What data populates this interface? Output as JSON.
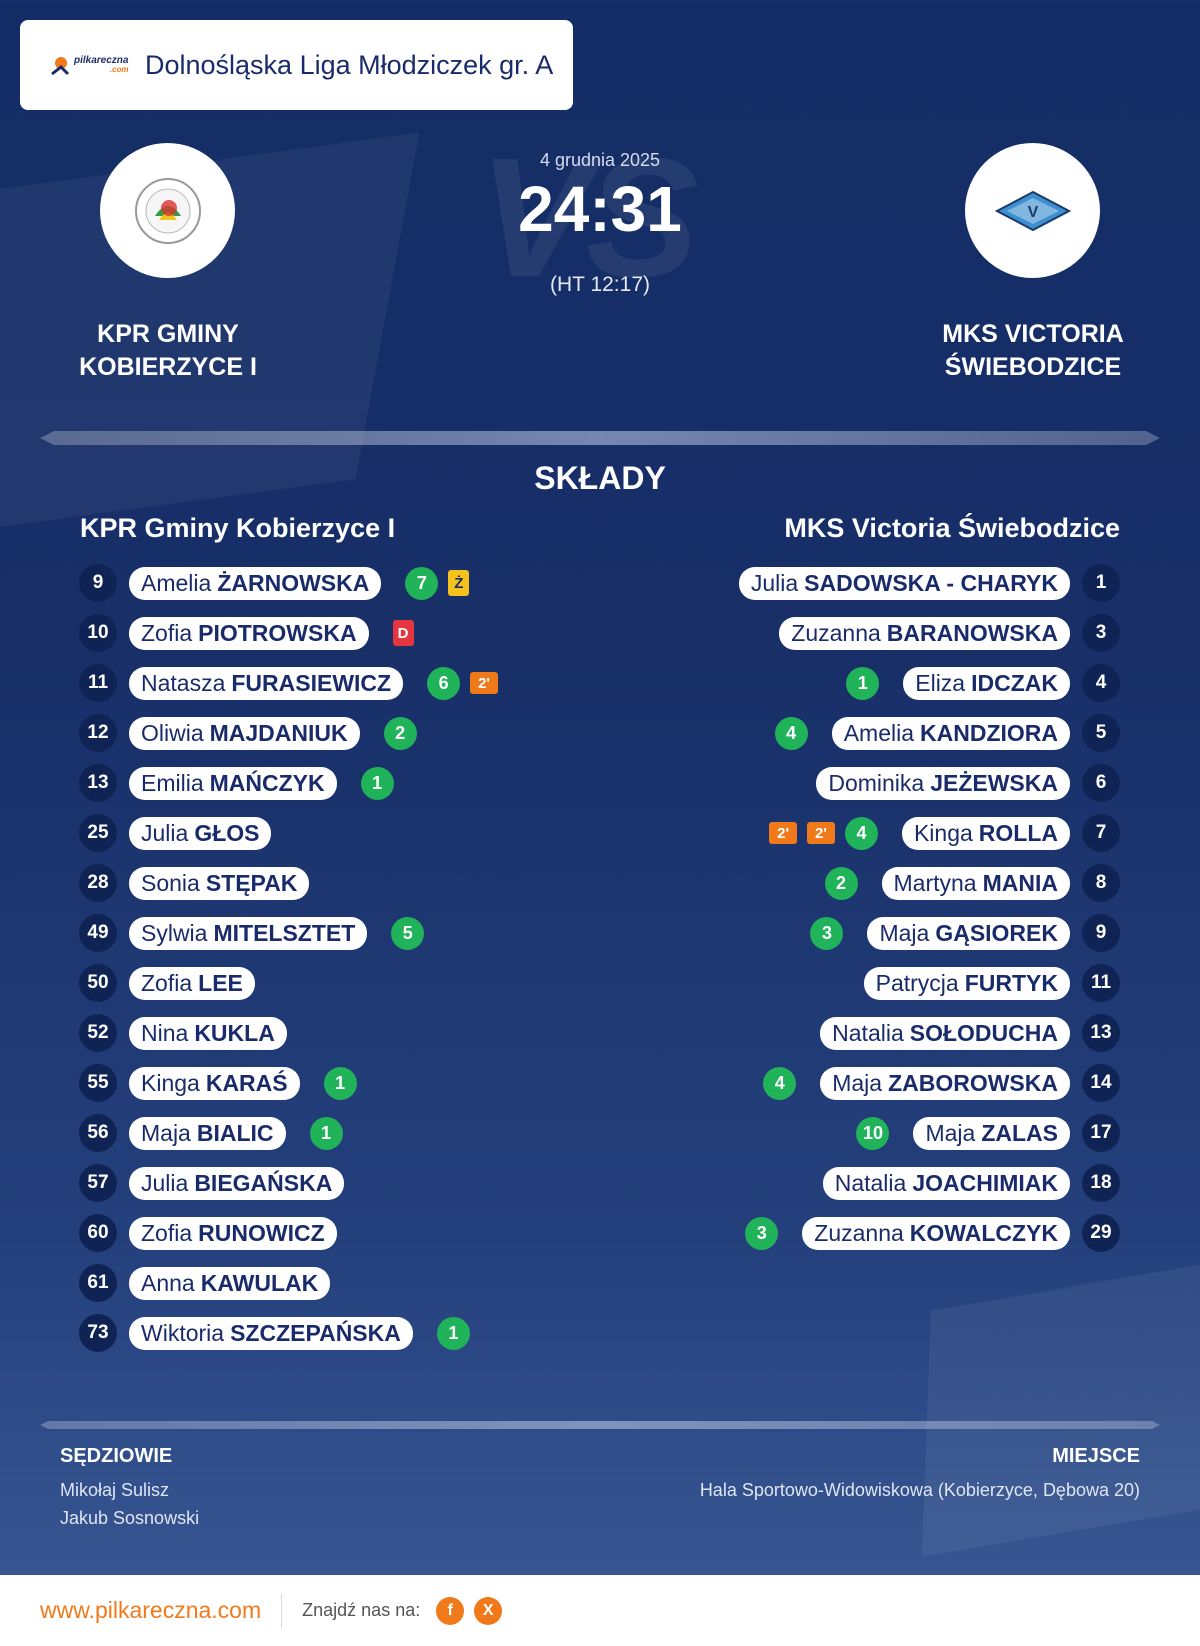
{
  "brand": {
    "logo_name": "pilkareczna",
    "logo_suffix": ".com"
  },
  "league": "Dolnośląska Liga Młodziczek gr. A",
  "match": {
    "date": "4 grudnia 2025",
    "score": "24:31",
    "halftime": "(HT 12:17)",
    "vs": "VS"
  },
  "home": {
    "name": "KPR GMINY KOBIERZYCE I",
    "lineup_title": "KPR Gminy Kobierzyce I"
  },
  "away": {
    "name": "MKS VICTORIA ŚWIEBODZICE",
    "lineup_title": "MKS Victoria  Świebodzice"
  },
  "section_title": "SKŁADY",
  "home_players": [
    {
      "num": "9",
      "first": "Amelia",
      "last": "ŻARNOWSKA",
      "goals": "7",
      "card": "Ż"
    },
    {
      "num": "10",
      "first": "Zofia",
      "last": "PIOTROWSKA",
      "red": "D"
    },
    {
      "num": "11",
      "first": "Natasza",
      "last": "FURASIEWICZ",
      "goals": "6",
      "susp": [
        "2'"
      ]
    },
    {
      "num": "12",
      "first": "Oliwia",
      "last": "MAJDANIUK",
      "goals": "2"
    },
    {
      "num": "13",
      "first": "Emilia",
      "last": "MAŃCZYK",
      "goals": "1"
    },
    {
      "num": "25",
      "first": "Julia",
      "last": "GŁOS"
    },
    {
      "num": "28",
      "first": "Sonia",
      "last": "STĘPAK"
    },
    {
      "num": "49",
      "first": "Sylwia",
      "last": "MITELSZTET",
      "goals": "5"
    },
    {
      "num": "50",
      "first": "Zofia",
      "last": "LEE"
    },
    {
      "num": "52",
      "first": "Nina",
      "last": "KUKLA"
    },
    {
      "num": "55",
      "first": "Kinga",
      "last": "KARAŚ",
      "goals": "1"
    },
    {
      "num": "56",
      "first": "Maja",
      "last": "BIALIC",
      "goals": "1"
    },
    {
      "num": "57",
      "first": "Julia",
      "last": "BIEGAŃSKA"
    },
    {
      "num": "60",
      "first": "Zofia",
      "last": "RUNOWICZ"
    },
    {
      "num": "61",
      "first": "Anna",
      "last": "KAWULAK"
    },
    {
      "num": "73",
      "first": "Wiktoria",
      "last": "SZCZEPAŃSKA",
      "goals": "1"
    }
  ],
  "away_players": [
    {
      "num": "1",
      "first": "Julia",
      "last": "SADOWSKA - CHARYK"
    },
    {
      "num": "3",
      "first": "Zuzanna",
      "last": "BARANOWSKA"
    },
    {
      "num": "4",
      "first": "Eliza",
      "last": "IDCZAK",
      "goals": "1"
    },
    {
      "num": "5",
      "first": "Amelia",
      "last": "KANDZIORA",
      "goals": "4"
    },
    {
      "num": "6",
      "first": "Dominika",
      "last": "JEŻEWSKA"
    },
    {
      "num": "7",
      "first": "Kinga",
      "last": "ROLLA",
      "goals": "4",
      "susp": [
        "2'",
        "2'"
      ]
    },
    {
      "num": "8",
      "first": "Martyna",
      "last": "MANIA",
      "goals": "2"
    },
    {
      "num": "9",
      "first": "Maja",
      "last": "GĄSIOREK",
      "goals": "3"
    },
    {
      "num": "11",
      "first": "Patrycja",
      "last": "FURTYK"
    },
    {
      "num": "13",
      "first": "Natalia",
      "last": "SOŁODUCHA"
    },
    {
      "num": "14",
      "first": "Maja",
      "last": "ZABOROWSKA",
      "goals": "4"
    },
    {
      "num": "17",
      "first": "Maja",
      "last": "ZALAS",
      "goals": "10"
    },
    {
      "num": "18",
      "first": "Natalia",
      "last": "JOACHIMIAK"
    },
    {
      "num": "29",
      "first": "Zuzanna",
      "last": "KOWALCZYK",
      "goals": "3"
    }
  ],
  "referees": {
    "title": "SĘDZIOWIE",
    "names": [
      "Mikołaj Sulisz",
      "Jakub Sosnowski"
    ]
  },
  "venue": {
    "title": "MIEJSCE",
    "text": "Hala Sportowo-Widowiskowa (Kobierzyce, Dębowa 20)"
  },
  "footer": {
    "site": "www.pilkareczna.com",
    "find_us": "Znajdź nas na:",
    "socials": [
      {
        "icon": "facebook-icon",
        "glyph": "f"
      },
      {
        "icon": "x-icon",
        "glyph": "X"
      }
    ]
  },
  "colors": {
    "accent": "#f07a1a",
    "navy": "#1a2b6b",
    "goal": "#21b35a",
    "yellow": "#f4c21c",
    "red": "#e5363f"
  }
}
